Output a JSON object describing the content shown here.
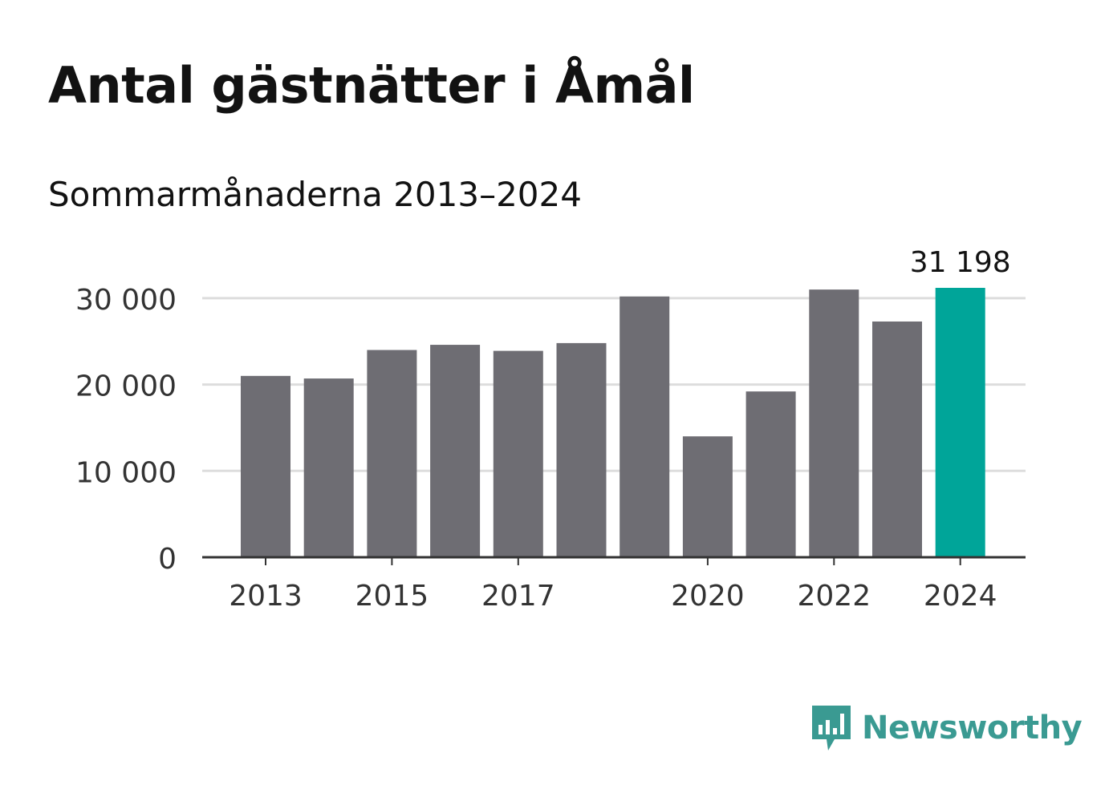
{
  "colors": {
    "bar": "#6e6d73",
    "highlight": "#00a599",
    "grid": "#dddddd",
    "axis": "#333333",
    "brand": "#3a9a92"
  },
  "brand": {
    "name": "Newsworthy",
    "icon": "bar-chart-speech-bubble-icon"
  },
  "chart_data": {
    "type": "bar",
    "title": "Antal gästnätter i Åmål",
    "subtitle": "Sommarmånaderna 2013–2024",
    "xlabel": "",
    "ylabel": "",
    "categories": [
      "2013",
      "2014",
      "2015",
      "2016",
      "2017",
      "2018",
      "2019",
      "2020",
      "2021",
      "2022",
      "2023",
      "2024"
    ],
    "x_tick_labels": [
      "2013",
      "2015",
      "2017",
      "2020",
      "2022",
      "2024"
    ],
    "values": [
      21000,
      20700,
      24000,
      24600,
      23900,
      24800,
      30200,
      14000,
      19200,
      31000,
      27300,
      31198
    ],
    "highlight_index": 11,
    "data_labels": [
      {
        "index": 11,
        "text": "31 198"
      }
    ],
    "ylim": [
      0,
      31198
    ],
    "y_ticks": [
      0,
      10000,
      20000,
      30000
    ],
    "y_tick_labels": [
      "0",
      "10 000",
      "20 000",
      "30 000"
    ],
    "grid": true,
    "legend": "none"
  }
}
